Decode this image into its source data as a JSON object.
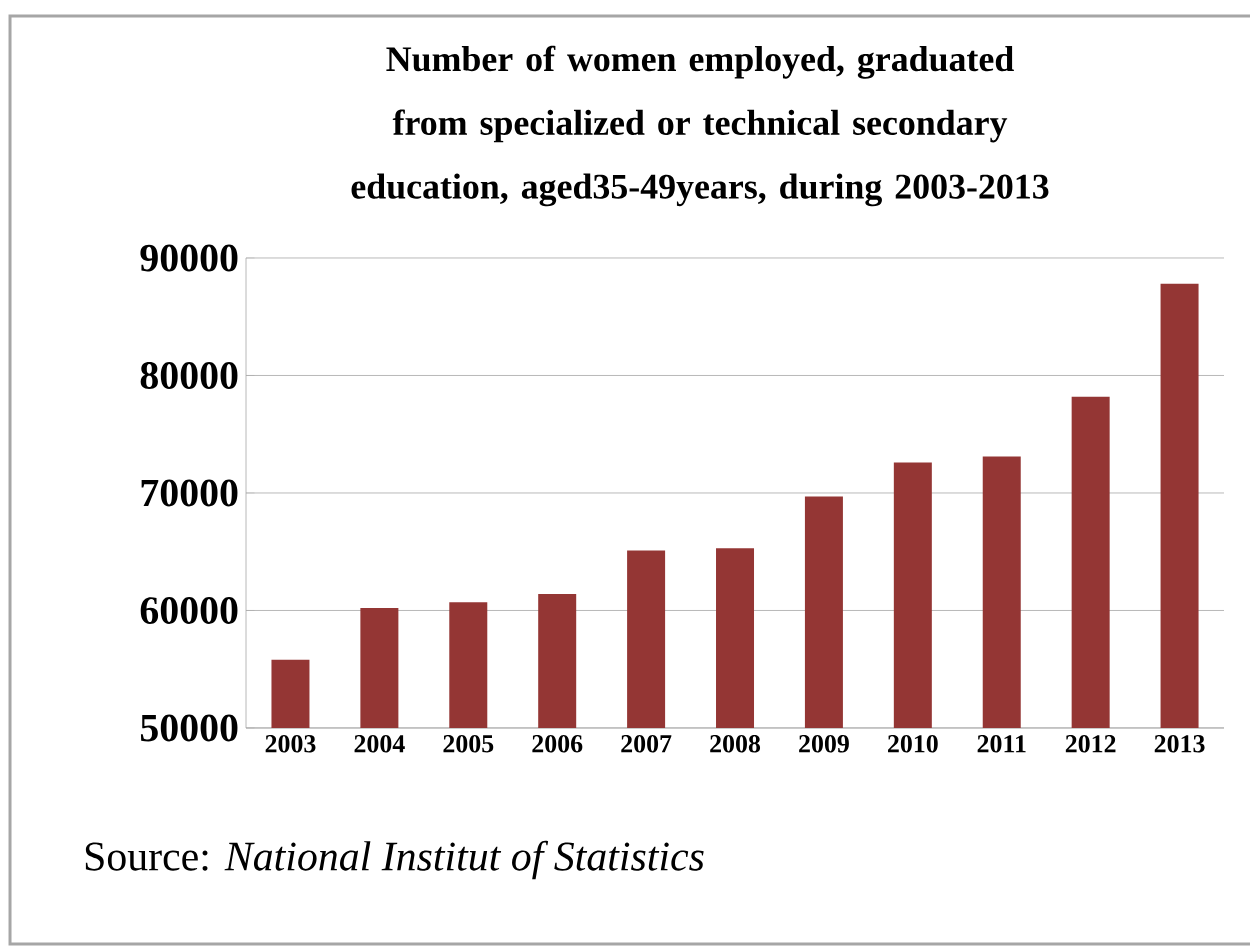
{
  "chart_data": {
    "type": "bar",
    "title": "Number of women employed, graduated from specialized or technical secondary education, aged35-49years, during 2003-2013",
    "categories": [
      "2003",
      "2004",
      "2005",
      "2006",
      "2007",
      "2008",
      "2009",
      "2010",
      "2011",
      "2012",
      "2013"
    ],
    "values": [
      55800,
      60200,
      60700,
      61400,
      65100,
      65300,
      69700,
      72600,
      73100,
      78200,
      87800
    ],
    "color": "#943634",
    "ylim": [
      50000,
      90000
    ],
    "yticks": [
      50000,
      60000,
      70000,
      80000,
      90000
    ],
    "grid": "y",
    "annotations": [
      "Source: *National Institut of Statistics*"
    ]
  }
}
